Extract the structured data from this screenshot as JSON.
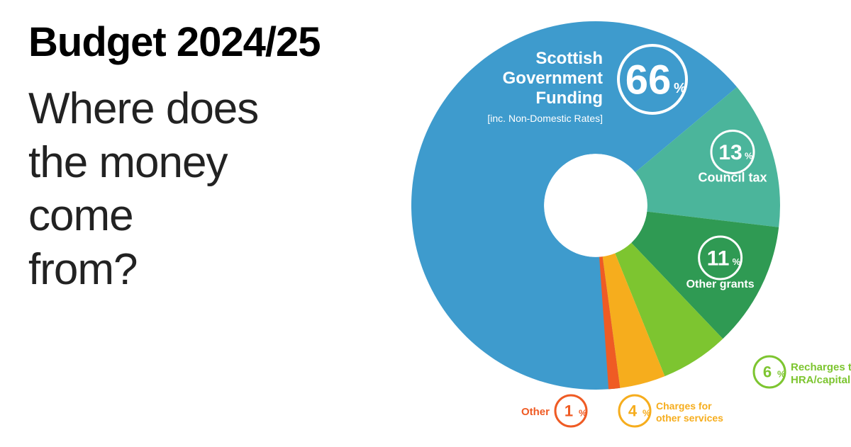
{
  "title": "Budget 2024/25",
  "subtitle_line1": "Where does",
  "subtitle_line2": "the money",
  "subtitle_line3": "come",
  "subtitle_line4": "from?",
  "chart": {
    "type": "donut",
    "background_color": "#ffffff",
    "inner_radius_ratio": 0.28,
    "slices": [
      {
        "label_line1": "Scottish",
        "label_line2": "Government",
        "label_line3": "Funding",
        "label_note": "[inc. Non-Domestic Rates]",
        "value": 66,
        "color": "#3e9bcd",
        "badge_text_color": "#ffffff",
        "badge_ring_color": "#ffffff",
        "badge_fill": "none",
        "label_color": "#ffffff"
      },
      {
        "label_line1": "Council tax",
        "value": 13,
        "color": "#4bb59b",
        "badge_text_color": "#ffffff",
        "badge_ring_color": "#ffffff",
        "badge_fill": "none",
        "label_color": "#ffffff"
      },
      {
        "label_line1": "Other grants",
        "value": 11,
        "color": "#2f9a53",
        "badge_text_color": "#ffffff",
        "badge_ring_color": "#ffffff",
        "badge_fill": "none",
        "label_color": "#ffffff"
      },
      {
        "label_line1": "Recharges to",
        "label_line2": "HRA/capital",
        "value": 6,
        "color": "#7dc530",
        "badge_text_color": "#7dc530",
        "badge_ring_color": "#7dc530",
        "badge_fill": "#ffffff",
        "label_color": "#7dc530"
      },
      {
        "label_line1": "Charges for",
        "label_line2": "other services",
        "value": 4,
        "color": "#f6ad1d",
        "badge_text_color": "#f6ad1d",
        "badge_ring_color": "#f6ad1d",
        "badge_fill": "#ffffff",
        "label_color": "#f6ad1d"
      },
      {
        "label_line1": "Other",
        "value": 1,
        "color": "#ef5b24",
        "badge_text_color": "#ef5b24",
        "badge_ring_color": "#ef5b24",
        "badge_fill": "#ffffff",
        "label_color": "#ef5b24"
      }
    ]
  }
}
